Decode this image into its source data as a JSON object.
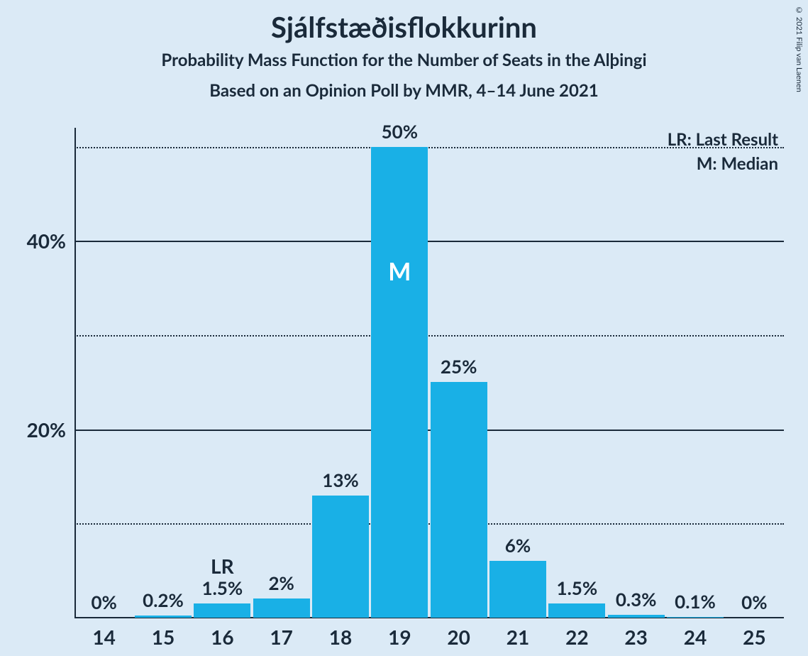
{
  "background_color": "#dbeaf6",
  "text_color": "#1a2a3a",
  "copyright": "© 2021 Filip van Laenen",
  "titles": {
    "main": "Sjálfstæðisflokkurinn",
    "sub1": "Probability Mass Function for the Number of Seats in the Alþingi",
    "sub2": "Based on an Opinion Poll by MMR, 4–14 June 2021"
  },
  "chart": {
    "type": "bar",
    "bar_color": "#19b0e6",
    "bar_width_ratio": 0.96,
    "ylim": [
      0,
      52
    ],
    "ymajor_ticks": [
      20,
      40
    ],
    "yminor_ticks": [
      10,
      30,
      50
    ],
    "ytick_suffix": "%",
    "grid_solid_color": "#1a2a3a",
    "grid_dotted_color": "#1a2a3a",
    "categories": [
      "14",
      "15",
      "16",
      "17",
      "18",
      "19",
      "20",
      "21",
      "22",
      "23",
      "24",
      "25"
    ],
    "values": [
      0,
      0.2,
      1.5,
      2,
      13,
      50,
      25,
      6,
      1.5,
      0.3,
      0.1,
      0
    ],
    "value_labels": [
      "0%",
      "0.2%",
      "1.5%",
      "2%",
      "13%",
      "50%",
      "25%",
      "6%",
      "1.5%",
      "0.3%",
      "0.1%",
      "0%"
    ],
    "lr_index": 2,
    "lr_label": "LR",
    "median_index": 5,
    "median_label": "M",
    "legend": {
      "lr": "LR: Last Result",
      "m": "M: Median"
    },
    "tick_label_fontsize": 28,
    "bar_label_fontsize": 26,
    "title_fontsize": 40,
    "subtitle_fontsize": 24
  }
}
